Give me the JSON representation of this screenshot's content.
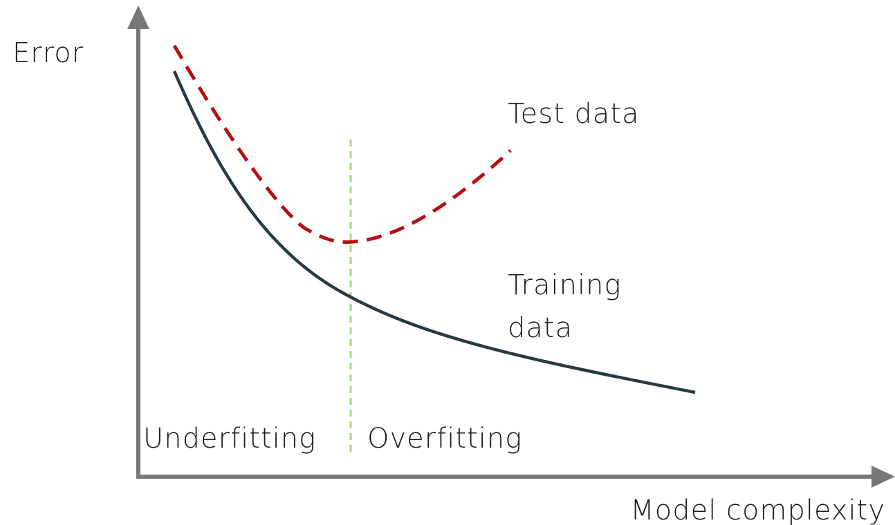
{
  "axes": {
    "y_label": "Error",
    "x_label": "Model complexity"
  },
  "curves": [
    {
      "label": [
        "Test data"
      ]
    },
    {
      "label": [
        "Training",
        "data"
      ]
    }
  ],
  "regions": [
    "Underfitting",
    "Overfitting"
  ]
}
